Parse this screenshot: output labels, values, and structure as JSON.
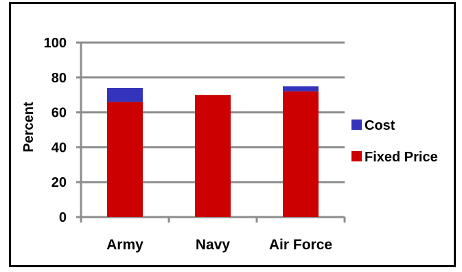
{
  "chart_data": {
    "type": "bar",
    "stacked": true,
    "categories": [
      "Army",
      "Navy",
      "Air Force"
    ],
    "series": [
      {
        "name": "Fixed Price",
        "values": [
          66,
          70,
          72
        ],
        "color": "#cc0000"
      },
      {
        "name": "Cost",
        "values": [
          8,
          0,
          3
        ],
        "color": "#3333bb"
      }
    ],
    "title": "",
    "xlabel": "",
    "ylabel": "Percent",
    "ylim": [
      0,
      100
    ],
    "yticks": [
      0,
      20,
      40,
      60,
      80,
      100
    ],
    "grid": true,
    "legend": "right",
    "legend_order": [
      "Cost",
      "Fixed Price"
    ]
  }
}
